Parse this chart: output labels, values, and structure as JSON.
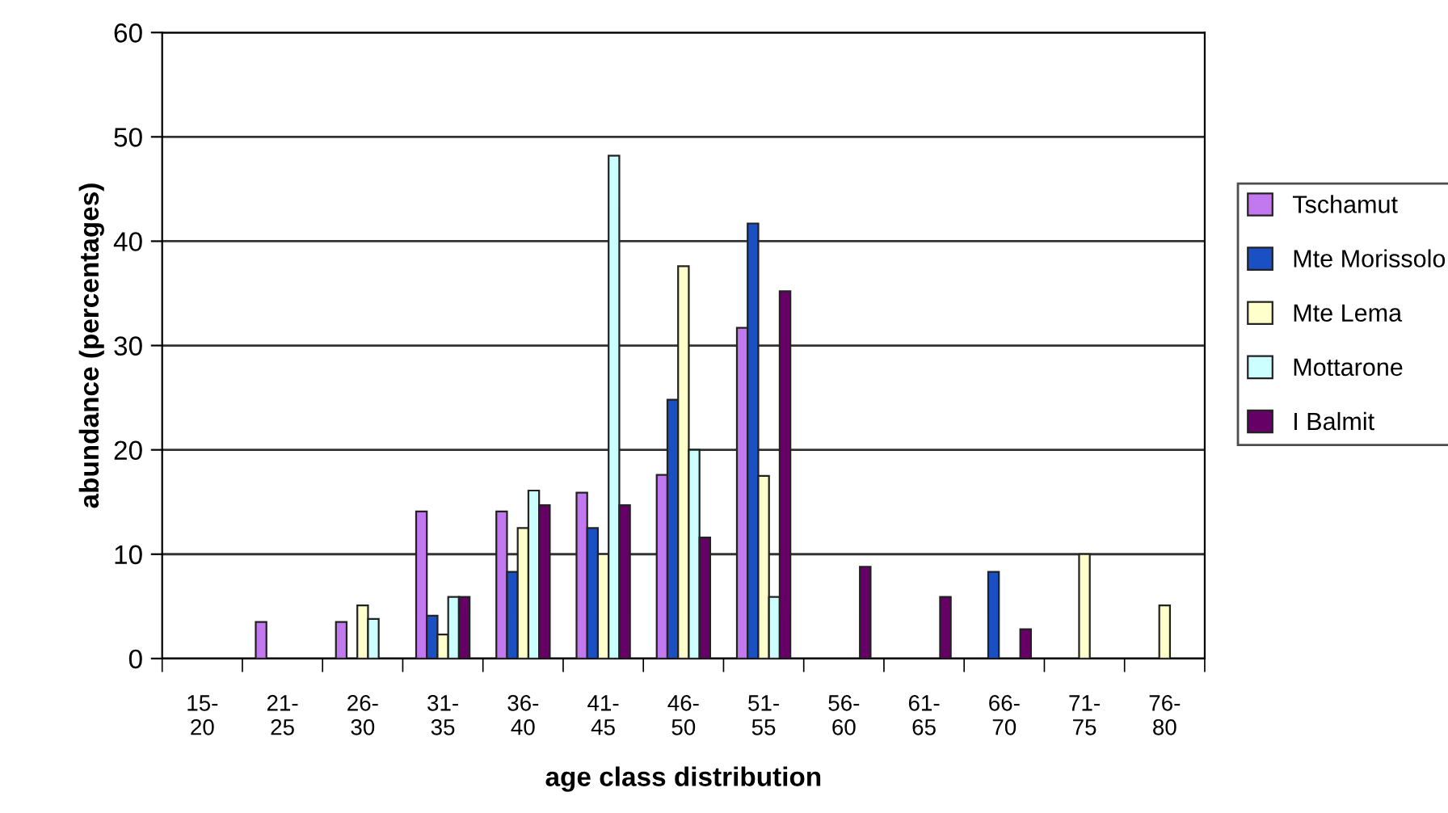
{
  "chart_data": {
    "type": "bar",
    "xlabel": "age class distribution",
    "ylabel": "abundance (percentages)",
    "categories": [
      "15-\n20",
      "21-\n25",
      "26-\n30",
      "31-\n35",
      "36-\n40",
      "41-\n45",
      "46-\n50",
      "51-\n55",
      "56-\n60",
      "61-\n65",
      "66-\n70",
      "71-\n75",
      "76-\n80"
    ],
    "series": [
      {
        "name": "Tschamut",
        "color": "#c278ee",
        "values": [
          null,
          3.5,
          3.5,
          14.1,
          14.1,
          15.9,
          17.6,
          31.7,
          null,
          null,
          null,
          null,
          null
        ]
      },
      {
        "name": "Mte Morissolo",
        "color": "#1b4fc4",
        "values": [
          null,
          null,
          null,
          4.1,
          8.3,
          12.5,
          24.8,
          41.7,
          null,
          null,
          8.3,
          null,
          null
        ]
      },
      {
        "name": "Mte Lema",
        "color": "#ffffcc",
        "values": [
          null,
          null,
          5.1,
          2.3,
          12.5,
          10,
          37.6,
          17.5,
          null,
          null,
          null,
          10,
          5.1
        ]
      },
      {
        "name": "Mottarone",
        "color": "#ccffff",
        "values": [
          null,
          null,
          3.8,
          5.9,
          16.1,
          48.2,
          20.0,
          5.9,
          null,
          null,
          null,
          null,
          null
        ]
      },
      {
        "name": "I Balmit",
        "color": "#660066",
        "values": [
          null,
          null,
          null,
          5.9,
          14.7,
          14.7,
          11.6,
          35.2,
          8.8,
          5.9,
          2.8,
          null,
          null
        ]
      }
    ],
    "ylim": [
      0,
      60
    ],
    "yticks": [
      0,
      10,
      20,
      30,
      40,
      50,
      60
    ],
    "grid": "y",
    "legend": "right"
  }
}
